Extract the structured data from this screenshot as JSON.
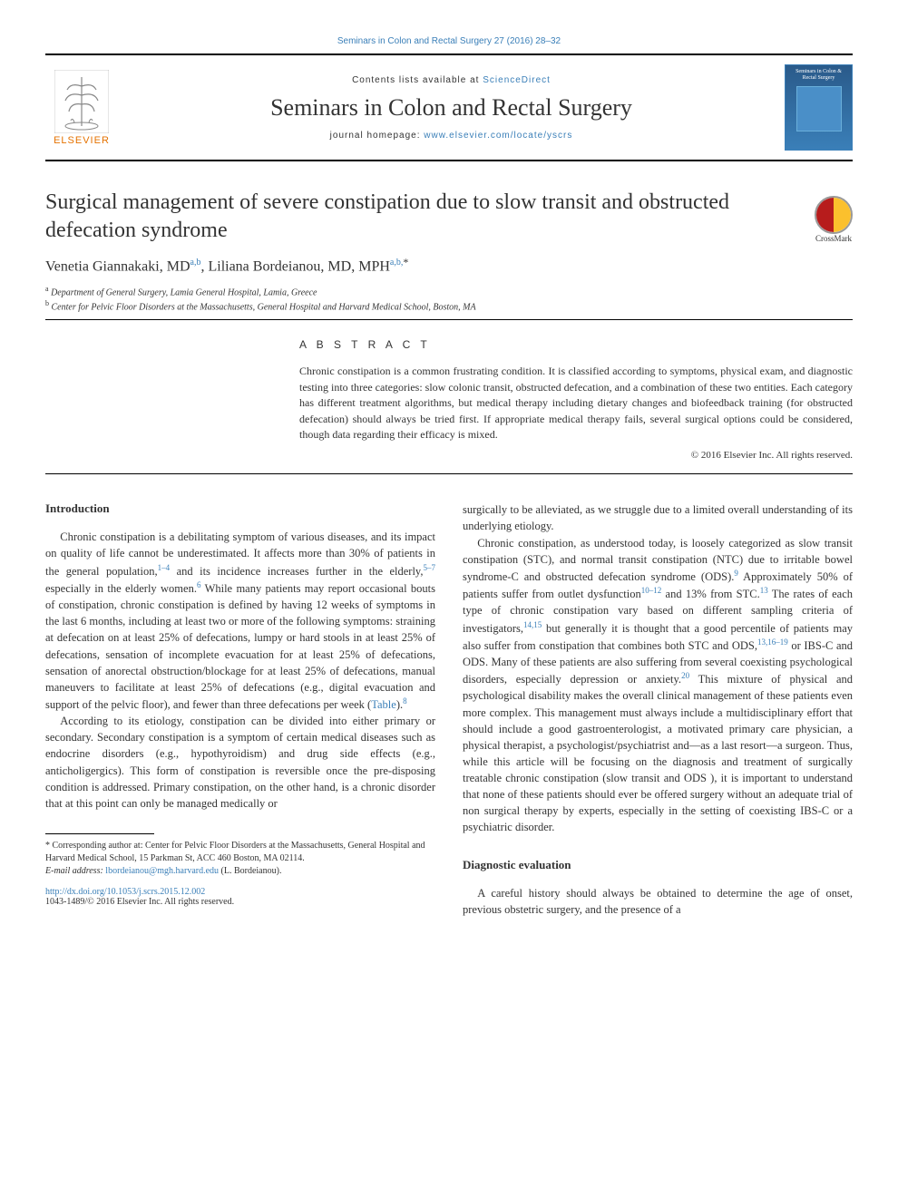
{
  "top_link": {
    "text": "Seminars in Colon and Rectal Surgery 27 (2016) 28–32"
  },
  "masthead": {
    "publisher": "ELSEVIER",
    "contents_prefix": "Contents lists available at ",
    "contents_link": "ScienceDirect",
    "journal_name": "Seminars in Colon and Rectal Surgery",
    "homepage_prefix": "journal homepage: ",
    "homepage_link": "www.elsevier.com/locate/yscrs",
    "cover_title": "Seminars in Colon & Rectal Surgery"
  },
  "crossmark": {
    "label": "CrossMark"
  },
  "title": "Surgical management of severe constipation due to slow transit and obstructed defecation syndrome",
  "authors_html": "Venetia Giannakaki, MD<sup>a,b</sup>, Liliana Bordeianou, MD, MPH<sup>a,b,</sup><span class='star'>*</span>",
  "affiliations": {
    "a": "Department of General Surgery, Lamia General Hospital, Lamia, Greece",
    "b": "Center for Pelvic Floor Disorders at the Massachusetts, General Hospital and Harvard Medical School, Boston, MA"
  },
  "abstract": {
    "heading": "A B S T R A C T",
    "text": "Chronic constipation is a common frustrating condition. It is classified according to symptoms, physical exam, and diagnostic testing into three categories: slow colonic transit, obstructed defecation, and a combination of these two entities. Each category has different treatment algorithms, but medical therapy including dietary changes and biofeedback training (for obstructed defecation) should always be tried first. If appropriate medical therapy fails, several surgical options could be considered, though data regarding their efficacy is mixed.",
    "copyright": "© 2016 Elsevier Inc. All rights reserved."
  },
  "sections": {
    "intro_heading": "Introduction",
    "intro_p1_html": "Chronic constipation is a debilitating symptom of various diseases, and its impact on quality of life cannot be underestimated. It affects more than 30% of patients in the general population,<sup class='ref'>1–4</sup> and its incidence increases further in the elderly,<sup class='ref'>5–7</sup> especially in the elderly women.<sup class='ref'>6</sup> While many patients may report occasional bouts of constipation, chronic constipation is defined by having 12 weeks of symptoms in the last 6 months, including at least two or more of the following symptoms: straining at defecation on at least 25% of defecations, lumpy or hard stools in at least 25% of defecations, sensation of incomplete evacuation for at least 25% of defecations, sensation of anorectal obstruction/blockage for at least 25% of defecations, manual maneuvers to facilitate at least 25% of defecations (e.g., digital evacuation and support of the pelvic floor), and fewer than three defecations per week (<span class='link'>Table</span>).<sup class='ref'>8</sup>",
    "intro_p2": "According to its etiology, constipation can be divided into either primary or secondary. Secondary constipation is a symptom of certain medical diseases such as endocrine disorders (e.g., hypothyroidism) and drug side effects (e.g., anticholigergics). This form of constipation is reversible once the pre-disposing condition is addressed. Primary constipation, on the other hand, is a chronic disorder that at this point can only be managed medically or",
    "col2_p1": "surgically to be alleviated, as we struggle due to a limited overall understanding of its underlying etiology.",
    "col2_p2_html": "Chronic constipation, as understood today, is loosely categorized as slow transit constipation (STC), and normal transit constipation (NTC) due to irritable bowel syndrome-C and obstructed defecation syndrome (ODS).<sup class='ref'>9</sup> Approximately 50% of patients suffer from outlet dysfunction<sup class='ref'>10–12</sup> and 13% from STC.<sup class='ref'>13</sup> The rates of each type of chronic constipation vary based on different sampling criteria of investigators,<sup class='ref'>14,15</sup> but generally it is thought that a good percentile of patients may also suffer from constipation that combines both STC and ODS,<sup class='ref'>13,16–19</sup> or IBS-C and ODS. Many of these patients are also suffering from several coexisting psychological disorders, especially depression or anxiety.<sup class='ref'>20</sup> This mixture of physical and psychological disability makes the overall clinical management of these patients even more complex. This management must always include a multidisciplinary effort that should include a good gastroenterologist, a motivated primary care physician, a physical therapist, a psychologist/psychiatrist and—as a last resort—a surgeon. Thus, while this article will be focusing on the diagnosis and treatment of surgically treatable chronic constipation (slow transit and ODS ), it is important to understand that none of these patients should ever be offered surgery without an adequate trial of non surgical therapy by experts, especially in the setting of coexisting IBS-C or a psychiatric disorder.",
    "diag_heading": "Diagnostic evaluation",
    "diag_p1": "A careful history should always be obtained to determine the age of onset, previous obstetric surgery, and the presence of a"
  },
  "footnote": {
    "corr": "* Corresponding author at: Center for Pelvic Floor Disorders at the Massachusetts, General Hospital and Harvard Medical School, 15 Parkman St, ACC 460 Boston, MA 02114.",
    "email_label": "E-mail address:",
    "email": "lbordeianou@mgh.harvard.edu",
    "email_suffix": "(L. Bordeianou)."
  },
  "doi": {
    "url": "http://dx.doi.org/10.1053/j.scrs.2015.12.002",
    "issn_line": "1043-1489/© 2016 Elsevier Inc. All rights reserved."
  },
  "colors": {
    "link": "#3a7fb8",
    "publisher_orange": "#e57200",
    "cover_bg": "#3a7fb8"
  }
}
